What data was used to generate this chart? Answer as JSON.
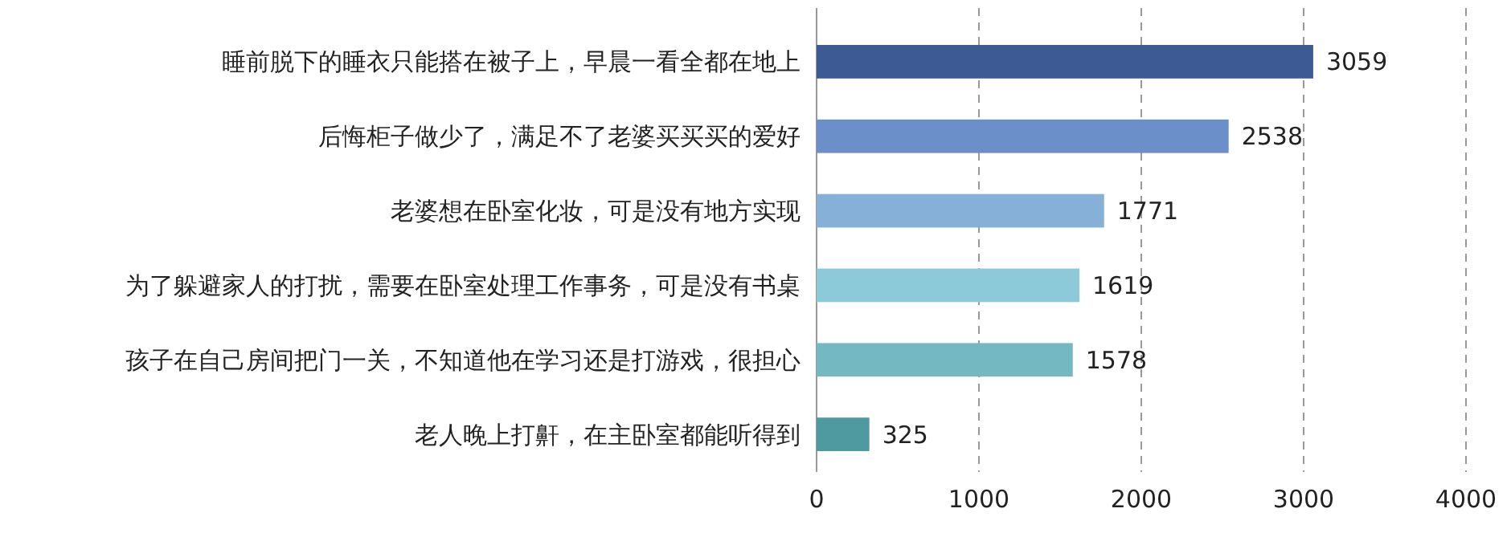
{
  "chart_data": {
    "type": "bar",
    "orientation": "horizontal",
    "categories": [
      "睡前脱下的睡衣只能搭在被子上，早晨一看全都在地上",
      "后悔柜子做少了，满足不了老婆买买买的爱好",
      "老婆想在卧室化妆，可是没有地方实现",
      "为了躲避家人的打扰，需要在卧室处理工作事务，可是没有书桌",
      "孩子在自己房间把门一关，不知道他在学习还是打游戏，很担心",
      "老人晚上打鼾，在主卧室都能听得到"
    ],
    "values": [
      3059,
      2538,
      1771,
      1619,
      1578,
      325
    ],
    "colors": [
      "#3e5a94",
      "#6a8fc9",
      "#86b0d8",
      "#8ccad9",
      "#74b8c2",
      "#4f9aa1"
    ],
    "xlim": [
      0,
      4000
    ],
    "xticks": [
      0,
      1000,
      2000,
      3000,
      4000
    ],
    "grid": "x",
    "data_labels": true
  }
}
